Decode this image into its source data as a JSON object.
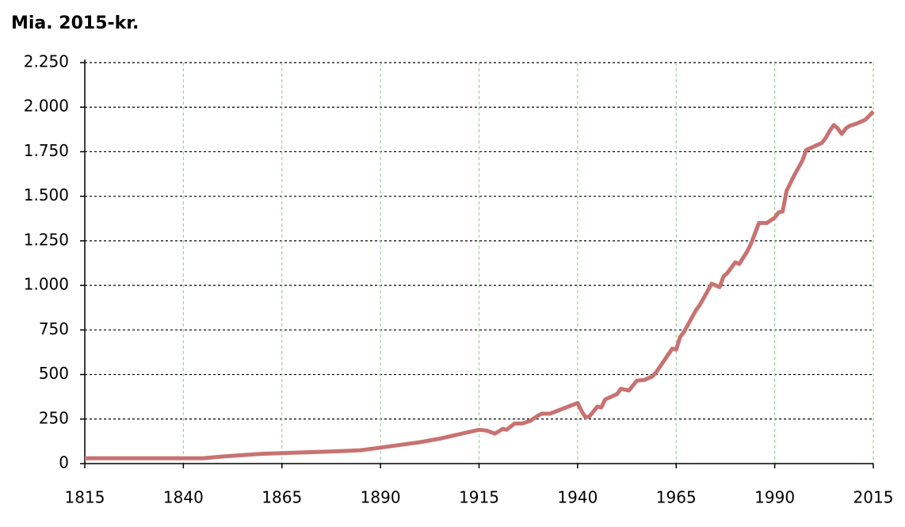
{
  "chart_data": {
    "type": "line",
    "title": "Mia. 2015-kr.",
    "x": [
      1815,
      1845,
      1850,
      1860,
      1880,
      1885,
      1890,
      1900,
      1905,
      1910,
      1915,
      1917,
      1919,
      1921,
      1922,
      1924,
      1926,
      1928,
      1930,
      1931,
      1933,
      1940,
      1941,
      1942,
      1943,
      1945,
      1946,
      1947,
      1949,
      1950,
      1951,
      1953,
      1955,
      1957,
      1959,
      1960,
      1962,
      1964,
      1965,
      1966,
      1967,
      1968,
      1970,
      1971,
      1972,
      1974,
      1976,
      1977,
      1978,
      1980,
      1981,
      1983,
      1984,
      1986,
      1988,
      1990,
      1991,
      1992,
      1993,
      1995,
      1997,
      1998,
      2000,
      2002,
      2003,
      2004,
      2005,
      2006,
      2007,
      2008,
      2009,
      2011,
      2012,
      2013,
      2015
    ],
    "values": [
      30,
      30,
      40,
      55,
      70,
      75,
      90,
      120,
      140,
      165,
      190,
      185,
      168,
      195,
      190,
      225,
      225,
      240,
      270,
      280,
      280,
      340,
      295,
      260,
      265,
      320,
      315,
      360,
      380,
      390,
      420,
      410,
      465,
      470,
      490,
      515,
      580,
      645,
      640,
      710,
      740,
      780,
      860,
      890,
      930,
      1010,
      990,
      1050,
      1070,
      1130,
      1120,
      1190,
      1235,
      1350,
      1350,
      1380,
      1410,
      1415,
      1530,
      1620,
      1700,
      1760,
      1780,
      1800,
      1830,
      1870,
      1900,
      1880,
      1850,
      1880,
      1895,
      1910,
      1920,
      1930,
      1975
    ],
    "color": "#c87272",
    "xlim": [
      1815,
      2015
    ],
    "xticks": [
      1815,
      1840,
      1865,
      1890,
      1915,
      1940,
      1965,
      1990,
      2015
    ],
    "ylim": [
      0,
      2250
    ],
    "yticks": [
      0,
      250,
      500,
      750,
      {
        "value": 1000,
        "label": "1.000"
      },
      {
        "value": 1250,
        "label": "1.250"
      },
      {
        "value": 1500,
        "label": "1.500"
      },
      {
        "value": 1750,
        "label": "1.750"
      },
      {
        "value": 2000,
        "label": "2.000"
      },
      {
        "value": 2250,
        "label": "2.250"
      }
    ],
    "grid": true
  }
}
